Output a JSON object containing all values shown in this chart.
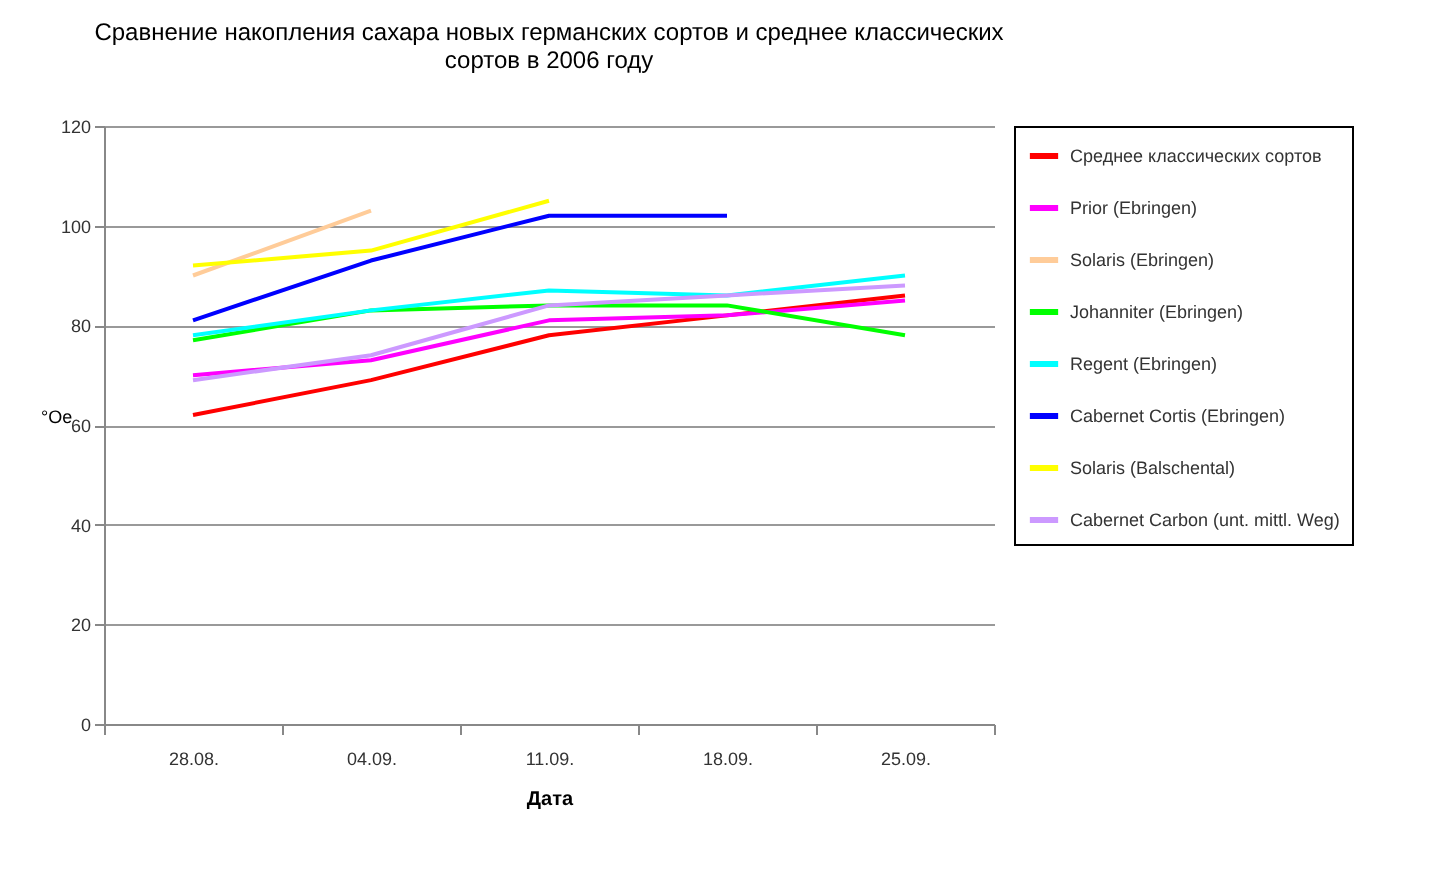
{
  "chart_data": {
    "type": "line",
    "title": "Сравнение накопления сахара  новых германских сортов и среднее  классических сортов в 2006 году",
    "xlabel": "Дата",
    "ylabel": "°Oe",
    "categories": [
      "28.08.",
      "04.09.",
      "11.09.",
      "18.09.",
      "25.09."
    ],
    "series": [
      {
        "name": "Среднее классических сортов",
        "color": "#ff0000",
        "values": [
          62,
          69,
          78,
          82,
          86
        ]
      },
      {
        "name": "Prior (Ebringen)",
        "color": "#ff00ff",
        "values": [
          70,
          73,
          81,
          82,
          85
        ]
      },
      {
        "name": "Solaris (Ebringen)",
        "color": "#ffcc99",
        "values": [
          90,
          103,
          null,
          null,
          null
        ]
      },
      {
        "name": "Johanniter (Ebringen)",
        "color": "#00ff00",
        "values": [
          77,
          83,
          84,
          84,
          78
        ]
      },
      {
        "name": "Regent (Ebringen)",
        "color": "#00ffff",
        "values": [
          78,
          83,
          87,
          86,
          90
        ]
      },
      {
        "name": "Cabernet Cortis (Ebringen)",
        "color": "#0000ff",
        "values": [
          81,
          93,
          102,
          102,
          null
        ]
      },
      {
        "name": "Solaris (Balschental)",
        "color": "#ffff00",
        "values": [
          92,
          95,
          105,
          null,
          null
        ]
      },
      {
        "name": "Cabernet Carbon (unt. mittl. Weg)",
        "color": "#cc99ff",
        "values": [
          69,
          74,
          84,
          86,
          88
        ]
      }
    ],
    "ylim": [
      0,
      120
    ],
    "yticks": [
      0,
      20,
      40,
      60,
      80,
      100,
      120
    ],
    "grid": "y",
    "legend": "right",
    "marker": "none",
    "line_style": "solid"
  }
}
